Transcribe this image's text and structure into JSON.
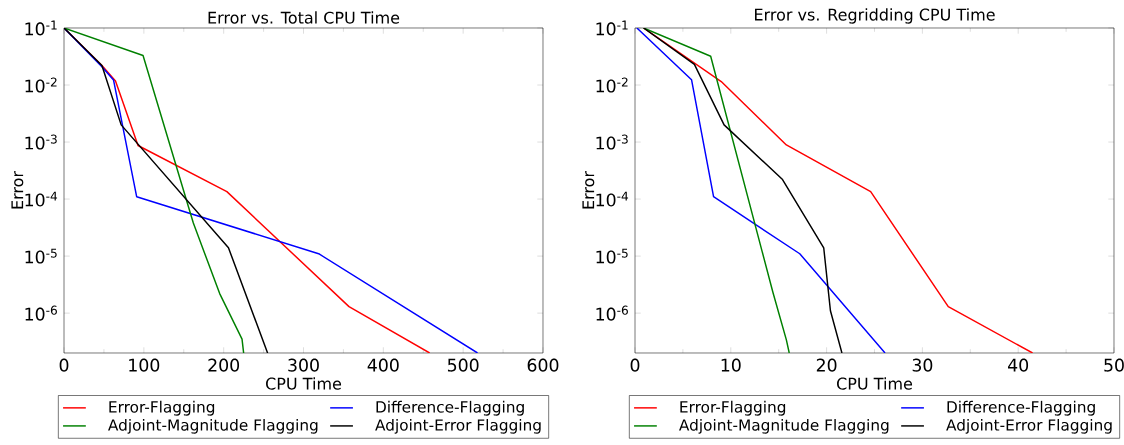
{
  "chart_data": [
    {
      "type": "line",
      "title": "Error vs. Total CPU Time",
      "xlabel": "CPU Time",
      "ylabel": "Error",
      "log": "y",
      "grid": false,
      "legend": "bottom",
      "marker": "none",
      "line_style": "solid",
      "xlim": [
        0,
        600
      ],
      "xticks": [
        0,
        100,
        200,
        300,
        400,
        500,
        600
      ],
      "ylim": [
        2e-07,
        0.1
      ],
      "yticks": [
        {
          "value": 0.1,
          "label": "10$^{-1}$"
        },
        {
          "value": 0.01,
          "label": "10$^{-2}$"
        },
        {
          "value": 0.001,
          "label": "10$^{-3}$"
        },
        {
          "value": 0.0001,
          "label": "10$^{-4}$"
        },
        {
          "value": 1e-05,
          "label": "10$^{-5}$"
        },
        {
          "value": 1e-06,
          "label": "10$^{-6}$"
        }
      ],
      "series": [
        {
          "name": "Error-Flagging",
          "color": "#ff0000",
          "x": [
            0,
            47.5,
            64.5,
            92.7,
            204,
            357,
            458
          ],
          "values": [
            0.1,
            0.022,
            0.0118,
            0.00087,
            0.000135,
            1.3e-06,
            2e-07
          ]
        },
        {
          "name": "Difference-Flagging",
          "color": "#0000ff",
          "x": [
            0,
            47.5,
            62,
            91,
            319,
            518
          ],
          "values": [
            0.1,
            0.021,
            0.0123,
            0.00011,
            1.1e-05,
            2e-07
          ]
        },
        {
          "name": "Adjoint-Magnitude Flagging",
          "color": "#008000",
          "x": [
            0,
            99,
            162,
            195,
            223,
            225
          ],
          "values": [
            0.1,
            0.033,
            3.8e-05,
            2.2e-06,
            3.5e-07,
            2e-07
          ]
        },
        {
          "name": "Adjoint-Error Flagging",
          "color": "#000000",
          "x": [
            0,
            47.5,
            71.6,
            206,
            255
          ],
          "values": [
            0.1,
            0.022,
            0.002,
            1.4e-05,
            2e-07
          ]
        }
      ]
    },
    {
      "type": "line",
      "title": "Error vs. Regridding CPU Time",
      "xlabel": "CPU Time",
      "ylabel": "Error",
      "log": "y",
      "grid": false,
      "legend": "bottom",
      "marker": "none",
      "line_style": "solid",
      "xlim": [
        0,
        50
      ],
      "xticks": [
        0,
        10,
        20,
        30,
        40,
        50
      ],
      "ylim": [
        2e-07,
        0.1
      ],
      "yticks": [
        {
          "value": 0.1,
          "label": "10$^{-1}$"
        },
        {
          "value": 0.01,
          "label": "10$^{-2}$"
        },
        {
          "value": 0.001,
          "label": "10$^{-3}$"
        },
        {
          "value": 0.0001,
          "label": "10$^{-4}$"
        },
        {
          "value": 1e-05,
          "label": "10$^{-5}$"
        },
        {
          "value": 1e-06,
          "label": "10$^{-6}$"
        }
      ],
      "series": [
        {
          "name": "Error-Flagging",
          "color": "#ff0000",
          "x": [
            0.9,
            9.0,
            15.8,
            24.6,
            32.7,
            41.5
          ],
          "values": [
            0.1,
            0.0115,
            0.00089,
            0.000135,
            1.3e-06,
            2e-07
          ]
        },
        {
          "name": "Difference-Flagging",
          "color": "#0000ff",
          "x": [
            0.2,
            5.9,
            8.2,
            17.2,
            26.1
          ],
          "values": [
            0.1,
            0.0124,
            0.00011,
            1.1e-05,
            2e-07
          ]
        },
        {
          "name": "Adjoint-Magnitude Flagging",
          "color": "#008000",
          "x": [
            0.9,
            7.9,
            14.4,
            15.8,
            16.1
          ],
          "values": [
            0.1,
            0.032,
            2.3e-06,
            3.4e-07,
            2e-07
          ]
        },
        {
          "name": "Adjoint-Error Flagging",
          "color": "#000000",
          "x": [
            0.9,
            6.2,
            9.3,
            15.4,
            19.7,
            20.4,
            21.6
          ],
          "values": [
            0.1,
            0.023,
            0.002,
            0.00022,
            1.4e-05,
            1.1e-06,
            2e-07
          ]
        }
      ]
    }
  ]
}
